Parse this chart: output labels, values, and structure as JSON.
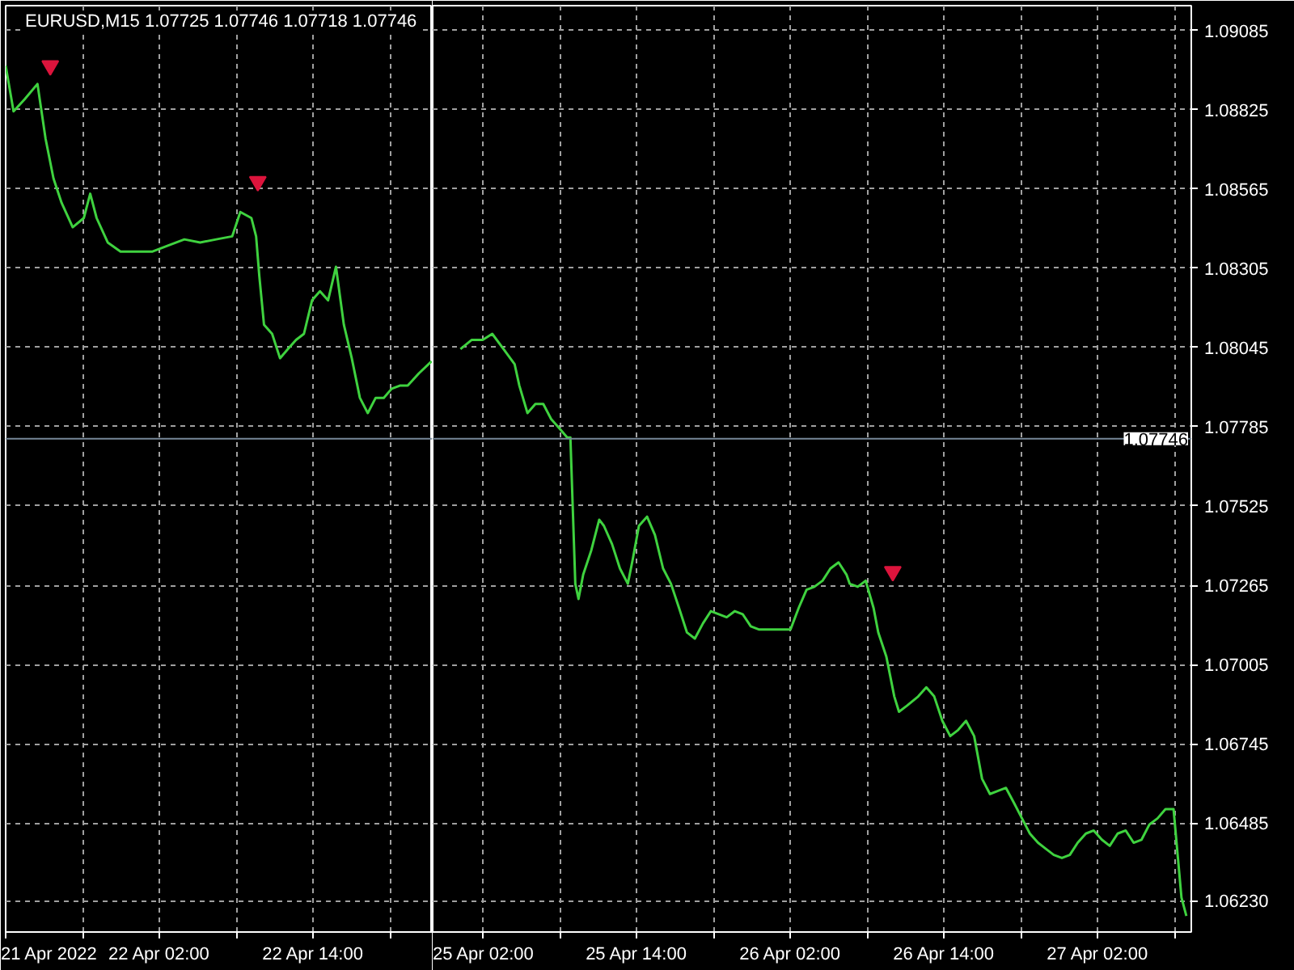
{
  "chart_data": [
    {
      "type": "line",
      "title": "EURUSD,M15  1.07725 1.07746 1.07718 1.07746",
      "xlim": [
        "2022-04-21T14:00",
        "2022-04-22T23:20"
      ],
      "ylim": [
        1.06127,
        1.09167
      ],
      "tick_labels": "x",
      "xticks": [
        {
          "value": "2022-04-21T14:00",
          "label": "21 Apr 2022"
        },
        {
          "value": "2022-04-21T20:00",
          "label": null
        },
        {
          "value": "2022-04-22T02:00",
          "label": "22 Apr 02:00"
        },
        {
          "value": "2022-04-22T08:00",
          "label": null
        },
        {
          "value": "2022-04-22T14:00",
          "label": "22 Apr 14:00"
        },
        {
          "value": "2022-04-22T20:00",
          "label": null
        }
      ],
      "yticks": [
        1.0623,
        1.06485,
        1.06745,
        1.07005,
        1.07265,
        1.07525,
        1.07785,
        1.08045,
        1.08305,
        1.08565,
        1.08825,
        1.09085
      ],
      "grid": true,
      "line_style": "solid",
      "ref_lines": [
        {
          "axis": "y",
          "value": 1.07746,
          "color": "#778899"
        }
      ],
      "series": [
        {
          "color": "#3fd23f",
          "x": [
            "2022-04-21T14:00",
            "2022-04-21T14:37",
            "2022-04-21T15:29",
            "2022-04-21T16:29",
            "2022-04-21T17:07",
            "2022-04-21T17:44",
            "2022-04-21T18:22",
            "2022-04-21T19:14",
            "2022-04-21T20:06",
            "2022-04-21T20:36",
            "2022-04-21T21:06",
            "2022-04-21T21:58",
            "2022-04-21T22:58",
            "2022-04-22T00:13",
            "2022-04-22T01:28",
            "2022-04-22T02:42",
            "2022-04-22T03:57",
            "2022-04-22T05:11",
            "2022-04-22T06:26",
            "2022-04-22T07:41",
            "2022-04-22T08:19",
            "2022-04-22T09:11",
            "2022-04-22T09:33",
            "2022-04-22T09:48",
            "2022-04-22T10:10",
            "2022-04-22T10:48",
            "2022-04-22T11:25",
            "2022-04-22T12:02",
            "2022-04-22T12:40",
            "2022-04-22T13:17",
            "2022-04-22T13:55",
            "2022-04-22T14:32",
            "2022-04-22T15:10",
            "2022-04-22T15:47",
            "2022-04-22T16:24",
            "2022-04-22T17:01",
            "2022-04-22T17:39",
            "2022-04-22T18:16",
            "2022-04-22T18:53",
            "2022-04-22T19:31",
            "2022-04-22T20:08",
            "2022-04-22T20:46",
            "2022-04-22T21:23",
            "2022-04-22T22:15",
            "2022-04-22T23:15"
          ],
          "values": [
            1.0897,
            1.0882,
            1.0886,
            1.0891,
            1.0873,
            1.086,
            1.0852,
            1.0844,
            1.0847,
            1.0855,
            1.0847,
            1.0839,
            1.0836,
            1.0836,
            1.0836,
            1.0838,
            1.084,
            1.0839,
            1.084,
            1.0841,
            1.0849,
            1.0847,
            1.0841,
            1.0828,
            1.0812,
            1.0809,
            1.0801,
            1.0804,
            1.0807,
            1.0809,
            1.082,
            1.0823,
            1.082,
            1.0831,
            1.0812,
            1.0801,
            1.0788,
            1.0783,
            1.0788,
            1.0788,
            1.0791,
            1.0792,
            1.0792,
            1.0796,
            1.08
          ]
        },
        {
          "type": "scatter",
          "color": "#dc143c",
          "marker": "triangle",
          "x": [
            "2022-04-21T17:29",
            "2022-04-22T09:41"
          ],
          "values": [
            1.0897,
            1.0859
          ]
        }
      ]
    },
    {
      "type": "line",
      "xlim": [
        "2022-04-24T22:05",
        "2022-04-27T09:18"
      ],
      "ylim": [
        1.06127,
        1.09167
      ],
      "xticks": [
        {
          "value": "2022-04-25T02:00",
          "label": "25 Apr 02:00"
        },
        {
          "value": "2022-04-25T08:00",
          "label": null
        },
        {
          "value": "2022-04-25T14:00",
          "label": "25 Apr 14:00"
        },
        {
          "value": "2022-04-25T20:00",
          "label": null
        },
        {
          "value": "2022-04-26T02:00",
          "label": "26 Apr 02:00"
        },
        {
          "value": "2022-04-26T08:00",
          "label": null
        },
        {
          "value": "2022-04-26T14:00",
          "label": "26 Apr 14:00"
        },
        {
          "value": "2022-04-26T20:00",
          "label": null
        },
        {
          "value": "2022-04-27T02:00",
          "label": "27 Apr 02:00"
        },
        {
          "value": "2022-04-27T08:00",
          "label": null
        }
      ],
      "yticks": [
        {
          "value": 1.0623,
          "label": "1.06230"
        },
        1.06485,
        1.06745,
        1.07005,
        1.07265,
        1.07525,
        1.07785,
        1.08045,
        1.08305,
        1.08565,
        1.08825,
        1.09085
      ],
      "grid": true,
      "line_style": "solid",
      "ref_lines": [
        {
          "axis": "y",
          "value": 1.07746,
          "label": "1.07746",
          "color": "#778899"
        }
      ],
      "series": [
        {
          "color": "#3fd23f",
          "x": [
            "2022-04-25T00:15",
            "2022-04-25T01:07",
            "2022-04-25T01:59",
            "2022-04-25T02:44",
            "2022-04-25T03:37",
            "2022-04-25T04:29",
            "2022-04-25T04:51",
            "2022-04-25T05:29",
            "2022-04-25T06:06",
            "2022-04-25T06:43",
            "2022-04-25T07:20",
            "2022-04-25T07:58",
            "2022-04-25T08:35",
            "2022-04-25T08:50",
            "2022-04-25T09:13",
            "2022-04-25T09:28",
            "2022-04-25T09:50",
            "2022-04-25T10:28",
            "2022-04-25T11:05",
            "2022-04-25T11:27",
            "2022-04-25T12:05",
            "2022-04-25T12:42",
            "2022-04-25T13:19",
            "2022-04-25T13:42",
            "2022-04-25T14:11",
            "2022-04-25T14:49",
            "2022-04-25T15:26",
            "2022-04-25T16:04",
            "2022-04-25T16:41",
            "2022-04-25T17:19",
            "2022-04-25T17:56",
            "2022-04-25T18:33",
            "2022-04-25T19:11",
            "2022-04-25T19:48",
            "2022-04-25T20:25",
            "2022-04-25T21:02",
            "2022-04-25T21:40",
            "2022-04-25T22:17",
            "2022-04-25T22:55",
            "2022-04-25T23:32",
            "2022-04-26T00:10",
            "2022-04-26T00:47",
            "2022-04-26T01:24",
            "2022-04-26T02:01",
            "2022-04-26T02:39",
            "2022-04-26T03:16",
            "2022-04-26T03:53",
            "2022-04-26T04:31",
            "2022-04-26T05:08",
            "2022-04-26T05:46",
            "2022-04-26T06:23",
            "2022-04-26T06:38",
            "2022-04-26T07:16",
            "2022-04-26T07:53",
            "2022-04-26T08:30",
            "2022-04-26T08:52",
            "2022-04-26T09:30",
            "2022-04-26T10:07",
            "2022-04-26T10:29",
            "2022-04-26T11:07",
            "2022-04-26T11:59",
            "2022-04-26T12:37",
            "2022-04-26T13:14",
            "2022-04-26T13:52",
            "2022-04-26T14:29",
            "2022-04-26T15:06",
            "2022-04-26T15:43",
            "2022-04-26T16:21",
            "2022-04-26T16:58",
            "2022-04-26T17:35",
            "2022-04-26T18:13",
            "2022-04-26T18:50",
            "2022-04-26T19:28",
            "2022-04-26T20:05",
            "2022-04-26T20:42",
            "2022-04-26T21:20",
            "2022-04-26T21:57",
            "2022-04-26T22:34",
            "2022-04-26T23:12",
            "2022-04-26T23:49",
            "2022-04-27T00:26",
            "2022-04-27T01:04",
            "2022-04-27T01:41",
            "2022-04-27T02:19",
            "2022-04-27T02:56",
            "2022-04-27T03:33",
            "2022-04-27T04:11",
            "2022-04-27T04:48",
            "2022-04-27T05:25",
            "2022-04-27T06:02",
            "2022-04-27T06:40",
            "2022-04-27T07:17",
            "2022-04-27T07:55",
            "2022-04-27T08:32",
            "2022-04-27T08:55"
          ],
          "values": [
            1.0804,
            1.0807,
            1.0807,
            1.0809,
            1.0804,
            1.0799,
            1.0792,
            1.0783,
            1.0786,
            1.0786,
            1.0781,
            1.0778,
            1.0775,
            1.0775,
            1.0727,
            1.0722,
            1.073,
            1.0738,
            1.0748,
            1.0746,
            1.074,
            1.0732,
            1.0727,
            1.0735,
            1.0746,
            1.0749,
            1.0743,
            1.0732,
            1.0727,
            1.0719,
            1.0711,
            1.0709,
            1.0714,
            1.0718,
            1.0717,
            1.0716,
            1.0718,
            1.0717,
            1.0713,
            1.0712,
            1.0712,
            1.0712,
            1.0712,
            1.0712,
            1.0719,
            1.0725,
            1.0726,
            1.0728,
            1.0732,
            1.0734,
            1.073,
            1.0727,
            1.0726,
            1.0728,
            1.0719,
            1.0711,
            1.0703,
            1.069,
            1.0685,
            1.0687,
            1.069,
            1.0693,
            1.069,
            1.0682,
            1.0677,
            1.0679,
            1.0682,
            1.0677,
            1.0663,
            1.0658,
            1.0659,
            1.066,
            1.0655,
            1.065,
            1.0645,
            1.0642,
            1.064,
            1.0638,
            1.0637,
            1.0638,
            1.0642,
            1.0645,
            1.0646,
            1.0643,
            1.0641,
            1.0645,
            1.0646,
            1.0642,
            1.0643,
            1.0648,
            1.065,
            1.0653,
            1.0653,
            1.0624,
            1.0618
          ]
        },
        {
          "type": "scatter",
          "color": "#dc143c",
          "marker": "triangle",
          "x": [
            "2022-04-26T10:00"
          ],
          "values": [
            1.0731
          ]
        }
      ]
    }
  ]
}
